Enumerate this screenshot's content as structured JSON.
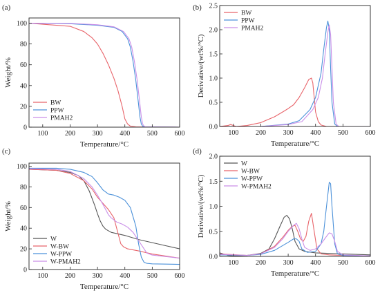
{
  "colors": {
    "red": "#e8646a",
    "blue": "#4a90d9",
    "violet": "#c98ee8",
    "gray": "#555555"
  },
  "chart_data": [
    {
      "panel": "(a)",
      "type": "line",
      "xlabel": "Temperature/°C",
      "ylabel": "Weight/%",
      "xlim": [
        50,
        600
      ],
      "ylim": [
        0,
        105
      ],
      "xticks": [
        100,
        200,
        300,
        400,
        500,
        600
      ],
      "yticks": [
        0,
        20,
        40,
        60,
        80,
        100
      ],
      "legend_position": "bottom-left",
      "series": [
        {
          "name": "BW",
          "color": "red",
          "x": [
            50,
            100,
            150,
            200,
            250,
            280,
            300,
            320,
            340,
            360,
            375,
            390,
            400,
            410,
            420,
            440,
            600
          ],
          "y": [
            100,
            99,
            98,
            97,
            92,
            86,
            80,
            71,
            60,
            47,
            35,
            20,
            8,
            3,
            1,
            0.3,
            0
          ]
        },
        {
          "name": "PPW",
          "color": "blue",
          "x": [
            50,
            200,
            300,
            360,
            390,
            410,
            420,
            430,
            440,
            450,
            455,
            460,
            465,
            470,
            600
          ],
          "y": [
            100,
            99.5,
            98,
            96,
            92,
            85,
            77,
            63,
            45,
            22,
            10,
            3,
            1,
            0.3,
            0
          ]
        },
        {
          "name": "PMAH2",
          "color": "violet",
          "x": [
            50,
            200,
            300,
            360,
            395,
            415,
            425,
            435,
            445,
            455,
            460,
            465,
            470,
            475,
            600
          ],
          "y": [
            100,
            99.8,
            98.5,
            96.5,
            92,
            85,
            77,
            63,
            45,
            22,
            10,
            3,
            1,
            0.3,
            0
          ]
        }
      ]
    },
    {
      "panel": "(b)",
      "type": "line",
      "xlabel": "Temperature/°C",
      "ylabel": "Derivative/(wt%/°C)",
      "xlim": [
        50,
        600
      ],
      "ylim": [
        0,
        2.5
      ],
      "xticks": [
        100,
        200,
        300,
        400,
        500,
        600
      ],
      "yticks": [
        0.0,
        0.5,
        1.0,
        1.5,
        2.0,
        2.5
      ],
      "legend_position": "top-left",
      "series": [
        {
          "name": "BW",
          "color": "red",
          "x": [
            50,
            80,
            90,
            100,
            110,
            150,
            200,
            250,
            280,
            300,
            320,
            340,
            360,
            375,
            385,
            390,
            395,
            400,
            410,
            420,
            440,
            600
          ],
          "y": [
            0,
            0.02,
            0.04,
            0.02,
            0,
            0.02,
            0.08,
            0.2,
            0.3,
            0.37,
            0.45,
            0.6,
            0.8,
            0.97,
            1.0,
            0.9,
            0.6,
            0.3,
            0.1,
            0.03,
            0,
            0
          ]
        },
        {
          "name": "PPW",
          "color": "blue",
          "x": [
            50,
            200,
            300,
            340,
            380,
            400,
            420,
            430,
            440,
            445,
            450,
            455,
            460,
            470,
            480,
            600
          ],
          "y": [
            0,
            0,
            0.05,
            0.12,
            0.35,
            0.6,
            1.1,
            1.6,
            2.05,
            2.18,
            2.0,
            1.2,
            0.5,
            0.05,
            0,
            0
          ]
        },
        {
          "name": "PMAH2",
          "color": "violet",
          "x": [
            50,
            200,
            300,
            350,
            390,
            410,
            425,
            435,
            445,
            450,
            455,
            460,
            465,
            475,
            485,
            600
          ],
          "y": [
            0,
            0,
            0.04,
            0.1,
            0.35,
            0.6,
            1.0,
            1.5,
            1.95,
            2.1,
            1.9,
            1.2,
            0.5,
            0.05,
            0,
            0
          ]
        }
      ]
    },
    {
      "panel": "(c)",
      "type": "line",
      "xlabel": "Temperature/°C",
      "ylabel": "Weight/%",
      "xlim": [
        50,
        600
      ],
      "ylim": [
        0,
        103
      ],
      "xticks": [
        100,
        200,
        300,
        400,
        500,
        600
      ],
      "yticks": [
        0,
        20,
        40,
        60,
        80,
        100
      ],
      "legend_position": "bottom-left",
      "series": [
        {
          "name": "W",
          "color": "gray",
          "x": [
            50,
            100,
            150,
            200,
            230,
            250,
            270,
            290,
            300,
            310,
            320,
            330,
            350,
            400,
            450,
            500,
            550,
            600
          ],
          "y": [
            97,
            96.5,
            96,
            94,
            91,
            86,
            76,
            62,
            54,
            47,
            42,
            39,
            36,
            33,
            29,
            26,
            23,
            20
          ]
        },
        {
          "name": "W-BW",
          "color": "red",
          "x": [
            50,
            150,
            200,
            250,
            280,
            300,
            320,
            340,
            360,
            375,
            385,
            395,
            410,
            450,
            500,
            550,
            600
          ],
          "y": [
            97,
            96,
            93,
            86,
            78,
            70,
            64,
            58,
            50,
            35,
            25,
            22,
            20,
            18,
            15,
            13,
            11
          ]
        },
        {
          "name": "W-PPW",
          "color": "blue",
          "x": [
            50,
            150,
            200,
            250,
            280,
            300,
            320,
            340,
            360,
            380,
            400,
            420,
            440,
            450,
            460,
            470,
            480,
            500,
            600
          ],
          "y": [
            98,
            98,
            97,
            94,
            90,
            84,
            77,
            73,
            72,
            70,
            67,
            60,
            42,
            25,
            12,
            7,
            6,
            5.5,
            5
          ]
        },
        {
          "name": "W-PMAH2",
          "color": "violet",
          "x": [
            50,
            150,
            200,
            250,
            280,
            300,
            320,
            340,
            350,
            370,
            390,
            410,
            430,
            450,
            470,
            480,
            500,
            550,
            600
          ],
          "y": [
            97.5,
            97,
            95,
            88,
            80,
            72,
            63,
            53,
            50,
            46,
            44,
            41,
            36,
            28,
            20,
            16,
            14,
            12.5,
            11
          ]
        }
      ]
    },
    {
      "panel": "(d)",
      "type": "line",
      "xlabel": "Temperature/°C",
      "ylabel": "Derivative/(wt%/°C)",
      "xlim": [
        50,
        600
      ],
      "ylim": [
        0,
        2.0
      ],
      "xticks": [
        100,
        200,
        300,
        400,
        500,
        600
      ],
      "yticks": [
        0.0,
        0.5,
        1.0,
        1.5,
        2.0
      ],
      "legend_position": "top-left",
      "series": [
        {
          "name": "W",
          "color": "gray",
          "x": [
            50,
            80,
            100,
            150,
            200,
            230,
            250,
            270,
            285,
            295,
            305,
            315,
            325,
            340,
            360,
            400,
            500,
            600
          ],
          "y": [
            0.07,
            0.02,
            0.01,
            0.02,
            0.06,
            0.15,
            0.35,
            0.6,
            0.78,
            0.82,
            0.75,
            0.55,
            0.3,
            0.15,
            0.1,
            0.07,
            0.05,
            0.03
          ]
        },
        {
          "name": "W-BW",
          "color": "red",
          "x": [
            50,
            150,
            200,
            250,
            280,
            300,
            315,
            325,
            335,
            345,
            355,
            365,
            375,
            385,
            395,
            405,
            420,
            450,
            500,
            600
          ],
          "y": [
            0.05,
            0.02,
            0.05,
            0.2,
            0.38,
            0.52,
            0.6,
            0.62,
            0.5,
            0.35,
            0.3,
            0.4,
            0.7,
            0.86,
            0.5,
            0.15,
            0.05,
            0.03,
            0.02,
            0.01
          ]
        },
        {
          "name": "W-PPW",
          "color": "blue",
          "x": [
            50,
            150,
            200,
            250,
            300,
            320,
            330,
            340,
            350,
            370,
            400,
            420,
            430,
            440,
            450,
            455,
            460,
            470,
            480,
            500,
            600
          ],
          "y": [
            0.03,
            0.02,
            0.04,
            0.12,
            0.28,
            0.35,
            0.35,
            0.3,
            0.15,
            0.08,
            0.1,
            0.25,
            0.5,
            1.0,
            1.48,
            1.45,
            1.0,
            0.25,
            0.05,
            0.02,
            0.01
          ]
        },
        {
          "name": "W-PMAH2",
          "color": "violet",
          "x": [
            50,
            150,
            200,
            250,
            280,
            300,
            320,
            330,
            340,
            350,
            360,
            380,
            400,
            420,
            440,
            450,
            460,
            470,
            480,
            500,
            600
          ],
          "y": [
            0.04,
            0.02,
            0.05,
            0.18,
            0.35,
            0.5,
            0.62,
            0.66,
            0.55,
            0.35,
            0.18,
            0.12,
            0.15,
            0.25,
            0.4,
            0.47,
            0.45,
            0.3,
            0.1,
            0.03,
            0.01
          ]
        }
      ]
    }
  ]
}
